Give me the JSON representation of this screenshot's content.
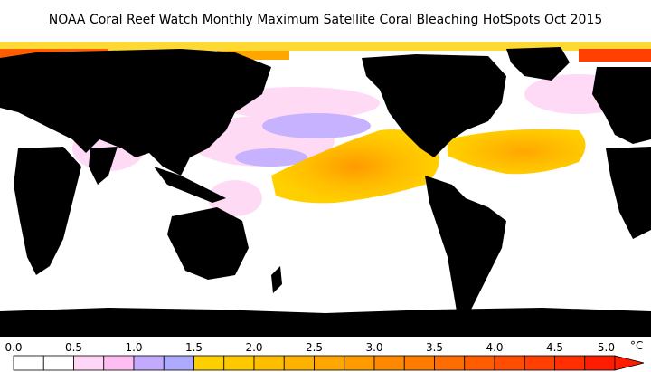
{
  "title": "NOAA Coral Reef Watch Monthly Maximum Satellite Coral Bleaching HotSpots    Oct 2015",
  "map": {
    "land_color": "#000000",
    "ocean_color": "#ffffff"
  },
  "legend": {
    "unit": "°C",
    "tick_labels": [
      "0.0",
      "0.5",
      "1.0",
      "1.5",
      "2.0",
      "2.5",
      "3.0",
      "3.5",
      "4.0",
      "4.5",
      "5.0"
    ],
    "colors": [
      "#ffffff",
      "#ffffff",
      "#ffd6f5",
      "#ffbef2",
      "#c2aaff",
      "#aeaaff",
      "#ffd000",
      "#ffc800",
      "#ffbd00",
      "#ffb100",
      "#ffa700",
      "#ff9a00",
      "#ff8800",
      "#ff7c00",
      "#ff6d00",
      "#ff5d00",
      "#ff4e00",
      "#ff4000",
      "#ff2f00",
      "#ff1d00"
    ],
    "arrow_color": "#ff1d00"
  },
  "chart_data": {
    "type": "heatmap",
    "title": "NOAA Coral Reef Watch Monthly Maximum Satellite Coral Bleaching HotSpots    Oct 2015",
    "colorbar": {
      "min": 0.0,
      "max": 5.0,
      "unit": "°C",
      "ticks": [
        0.0,
        0.5,
        1.0,
        1.5,
        2.0,
        2.5,
        3.0,
        3.5,
        4.0,
        4.5,
        5.0
      ],
      "extend": "max"
    }
  }
}
